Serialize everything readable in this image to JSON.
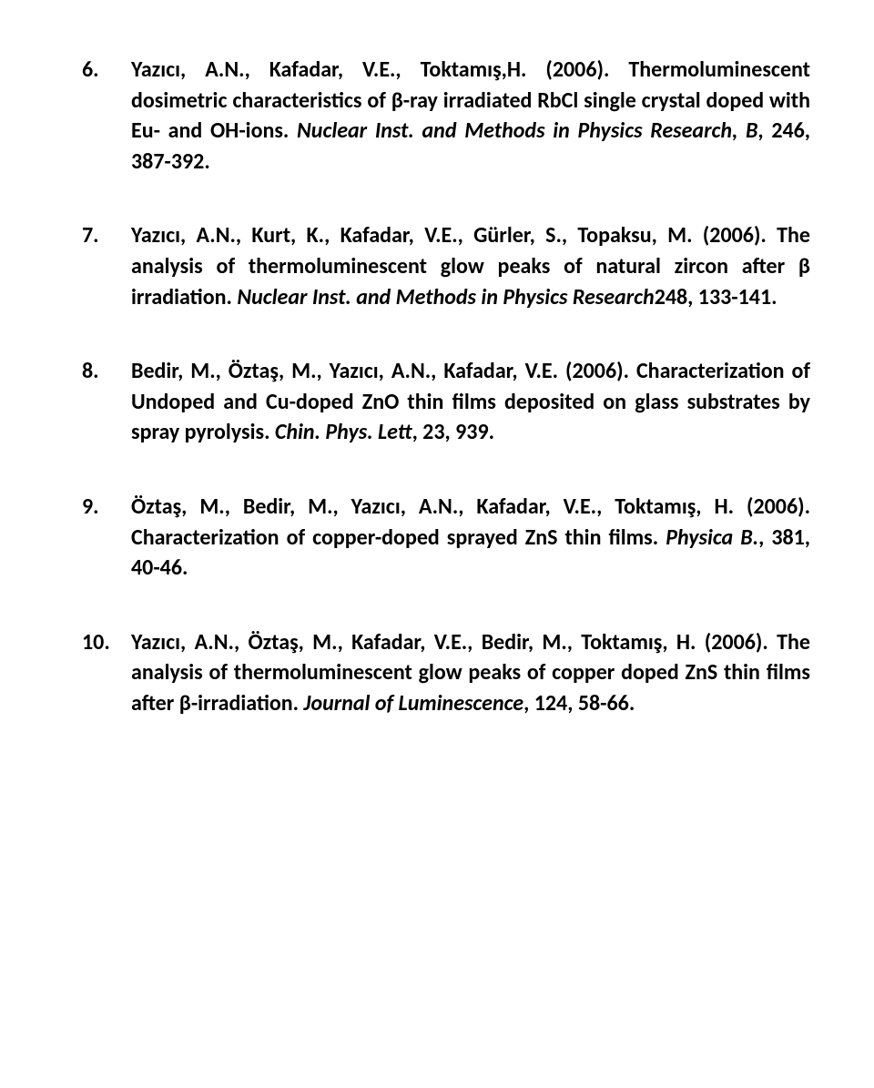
{
  "references": [
    {
      "n": "6.",
      "parts": [
        {
          "t": "Yazıcı, A.N., Kafadar, V.E., Toktamış,H. (2006). Thermoluminescent dosimetric characteristics of β-ray irradiated RbCl single crystal doped with Eu- and OH-ions. "
        },
        {
          "t": "Nuclear Inst. and Methods in Physics Research, B",
          "i": true
        },
        {
          "t": ", 246, 387-392."
        }
      ]
    },
    {
      "n": "7.",
      "parts": [
        {
          "t": "Yazıcı, A.N., Kurt, K., Kafadar, V.E., Gürler, S., Topaksu, M. (2006). The analysis of thermoluminescent glow peaks of natural zircon after β irradiation. "
        },
        {
          "t": "Nuclear Inst. and Methods in Physics Research",
          "i": true
        },
        {
          "t": "248, 133-141."
        }
      ]
    },
    {
      "n": "8.",
      "parts": [
        {
          "t": "Bedir, M., Öztaş, M., Yazıcı, A.N., Kafadar, V.E. (2006). Characterization of Undoped and Cu-doped ZnO thin films deposited on glass substrates by spray pyrolysis. "
        },
        {
          "t": "Chin. Phys. Lett",
          "i": true
        },
        {
          "t": ", 23, 939."
        }
      ]
    },
    {
      "n": "9.",
      "parts": [
        {
          "t": "Öztaş, M., Bedir, M., Yazıcı, A.N., Kafadar, V.E., Toktamış, H. (2006). Characterization of copper-doped sprayed ZnS thin films. "
        },
        {
          "t": "Physica B.",
          "i": true
        },
        {
          "t": ", 381, 40-46."
        }
      ]
    },
    {
      "n": "10.",
      "parts": [
        {
          "t": "Yazıcı, A.N., Öztaş, M., Kafadar, V.E.,  Bedir, M., Toktamış, H. (2006). The analysis of thermoluminescent glow peaks of copper doped ZnS thin films after β-irradiation. "
        },
        {
          "t": "Journal of Luminescence",
          "i": true
        },
        {
          "t": ", 124, 58-66."
        }
      ]
    }
  ]
}
